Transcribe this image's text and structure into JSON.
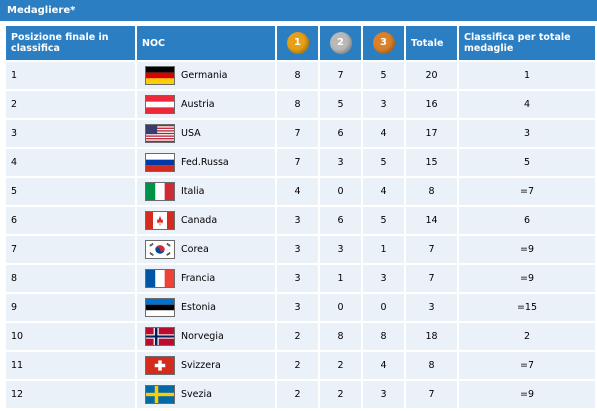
{
  "title": "Medagliere*",
  "headers": {
    "position": "Posizione finale in classifica",
    "noc": "NOC",
    "gold": "1",
    "silver": "2",
    "bronze": "3",
    "total": "Totale",
    "ranking": "Classifica per totale medaglie"
  },
  "colors": {
    "header_bg": "#2c7ec2",
    "row_bg": "#eaf1f9",
    "gold": "#e6a017",
    "silver": "#b9b9b9",
    "bronze": "#d9822b"
  },
  "rows": [
    {
      "pos": "1",
      "country": "Germania",
      "flag": "germany-flag-icon",
      "gold": "8",
      "silver": "7",
      "bronze": "5",
      "total": "20",
      "rank": "1"
    },
    {
      "pos": "2",
      "country": "Austria",
      "flag": "austria-flag-icon",
      "gold": "8",
      "silver": "5",
      "bronze": "3",
      "total": "16",
      "rank": "4"
    },
    {
      "pos": "3",
      "country": "USA",
      "flag": "usa-flag-icon",
      "gold": "7",
      "silver": "6",
      "bronze": "4",
      "total": "17",
      "rank": "3"
    },
    {
      "pos": "4",
      "country": "Fed.Russa",
      "flag": "russia-flag-icon",
      "gold": "7",
      "silver": "3",
      "bronze": "5",
      "total": "15",
      "rank": "5"
    },
    {
      "pos": "5",
      "country": "Italia",
      "flag": "italy-flag-icon",
      "gold": "4",
      "silver": "0",
      "bronze": "4",
      "total": "8",
      "rank": "=7"
    },
    {
      "pos": "6",
      "country": "Canada",
      "flag": "canada-flag-icon",
      "gold": "3",
      "silver": "6",
      "bronze": "5",
      "total": "14",
      "rank": "6"
    },
    {
      "pos": "7",
      "country": "Corea",
      "flag": "korea-flag-icon",
      "gold": "3",
      "silver": "3",
      "bronze": "1",
      "total": "7",
      "rank": "=9"
    },
    {
      "pos": "8",
      "country": "Francia",
      "flag": "france-flag-icon",
      "gold": "3",
      "silver": "1",
      "bronze": "3",
      "total": "7",
      "rank": "=9"
    },
    {
      "pos": "9",
      "country": "Estonia",
      "flag": "estonia-flag-icon",
      "gold": "3",
      "silver": "0",
      "bronze": "0",
      "total": "3",
      "rank": "=15"
    },
    {
      "pos": "10",
      "country": "Norvegia",
      "flag": "norway-flag-icon",
      "gold": "2",
      "silver": "8",
      "bronze": "8",
      "total": "18",
      "rank": "2"
    },
    {
      "pos": "11",
      "country": "Svizzera",
      "flag": "switzerland-flag-icon",
      "gold": "2",
      "silver": "2",
      "bronze": "4",
      "total": "8",
      "rank": "=7"
    },
    {
      "pos": "12",
      "country": "Svezia",
      "flag": "sweden-flag-icon",
      "gold": "2",
      "silver": "2",
      "bronze": "3",
      "total": "7",
      "rank": "=9"
    }
  ]
}
